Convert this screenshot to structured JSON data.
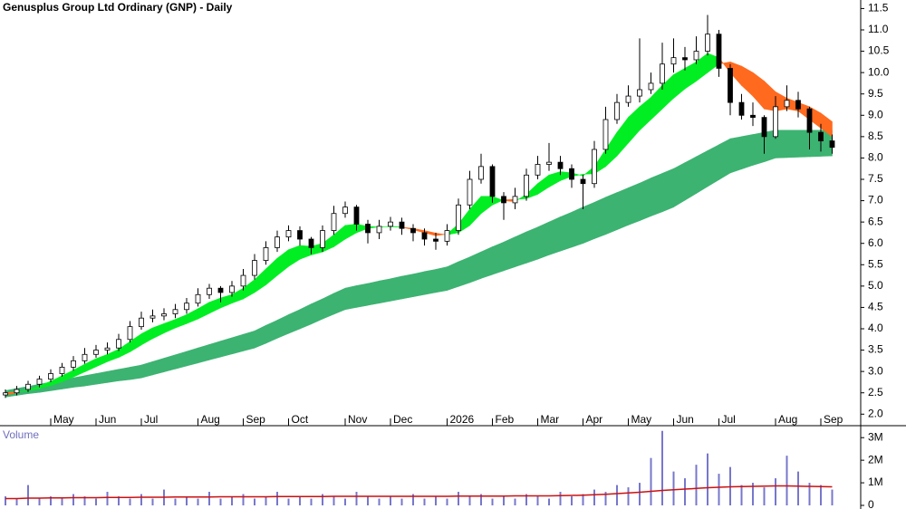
{
  "chart_data": [
    {
      "type": "candlestick",
      "title": "Genusplus Group Ltd Ordinary (GNP) - Daily",
      "categories": [
        null,
        null,
        null,
        null,
        "May",
        null,
        null,
        null,
        "Jun",
        null,
        null,
        null,
        "Jul",
        null,
        null,
        null,
        null,
        "Aug",
        null,
        null,
        null,
        "Sep",
        null,
        null,
        null,
        "Oct",
        null,
        null,
        null,
        null,
        "Nov",
        null,
        null,
        null,
        "Dec",
        null,
        null,
        null,
        null,
        "2026",
        null,
        null,
        null,
        "Feb",
        null,
        null,
        null,
        "Mar",
        null,
        null,
        null,
        "Apr",
        null,
        null,
        null,
        "May",
        null,
        null,
        null,
        "Jun",
        null,
        null,
        null,
        "Jul",
        null,
        null,
        null,
        null,
        "Aug",
        null,
        null,
        null,
        "Sep",
        null
      ],
      "open": [
        2.45,
        2.5,
        2.58,
        2.7,
        2.82,
        2.95,
        3.1,
        3.25,
        3.4,
        3.5,
        3.55,
        3.75,
        4.05,
        4.25,
        4.3,
        4.35,
        4.45,
        4.6,
        4.8,
        4.95,
        4.85,
        5.0,
        5.25,
        5.6,
        5.9,
        6.15,
        6.3,
        6.1,
        5.9,
        6.3,
        6.7,
        6.85,
        6.45,
        6.25,
        6.4,
        6.5,
        6.35,
        6.25,
        6.1,
        6.05,
        6.3,
        6.9,
        7.5,
        7.8,
        7.1,
        6.95,
        7.1,
        7.6,
        7.85,
        7.9,
        7.75,
        7.5,
        7.4,
        8.2,
        8.9,
        9.3,
        9.45,
        9.6,
        9.75,
        10.2,
        10.35,
        10.3,
        10.5,
        10.9,
        10.1,
        9.3,
        9.0,
        8.95,
        8.5,
        9.2,
        9.35,
        9.15,
        8.6,
        8.4
      ],
      "high": [
        2.58,
        2.66,
        2.78,
        2.9,
        3.05,
        3.2,
        3.36,
        3.55,
        3.62,
        3.68,
        3.88,
        4.18,
        4.4,
        4.45,
        4.48,
        4.58,
        4.72,
        4.95,
        5.05,
        5.0,
        5.12,
        5.4,
        5.75,
        6.05,
        6.3,
        6.42,
        6.4,
        6.15,
        6.42,
        6.88,
        6.98,
        6.9,
        6.55,
        6.55,
        6.62,
        6.6,
        6.45,
        6.35,
        6.25,
        6.45,
        7.05,
        7.7,
        8.1,
        7.85,
        7.2,
        7.3,
        7.75,
        8.05,
        8.35,
        8.05,
        7.85,
        7.6,
        8.4,
        9.2,
        9.5,
        9.7,
        10.8,
        10.0,
        10.7,
        10.8,
        10.6,
        10.85,
        11.35,
        11.0,
        10.2,
        9.5,
        9.3,
        9.0,
        9.45,
        9.7,
        9.55,
        9.2,
        8.8,
        8.55
      ],
      "low": [
        2.38,
        2.44,
        2.52,
        2.63,
        2.75,
        2.88,
        3.02,
        3.18,
        3.32,
        3.4,
        3.48,
        3.68,
        3.98,
        4.15,
        4.2,
        4.25,
        4.35,
        4.52,
        4.7,
        4.62,
        4.75,
        4.9,
        5.15,
        5.5,
        5.8,
        6.05,
        5.95,
        5.75,
        5.8,
        6.2,
        6.6,
        6.3,
        6.0,
        6.1,
        6.3,
        6.2,
        6.05,
        5.95,
        5.85,
        5.95,
        6.2,
        6.8,
        7.4,
        6.95,
        6.55,
        6.8,
        7.0,
        7.5,
        7.7,
        7.6,
        7.3,
        6.8,
        7.3,
        8.1,
        8.8,
        9.2,
        9.3,
        9.5,
        9.6,
        10.0,
        10.05,
        10.2,
        10.4,
        9.9,
        9.0,
        8.9,
        8.75,
        8.1,
        8.45,
        9.1,
        8.95,
        8.2,
        8.15,
        8.1
      ],
      "close": [
        2.5,
        2.58,
        2.7,
        2.82,
        2.95,
        3.1,
        3.25,
        3.4,
        3.5,
        3.55,
        3.75,
        4.05,
        4.25,
        4.3,
        4.35,
        4.45,
        4.6,
        4.8,
        4.95,
        4.85,
        5.0,
        5.25,
        5.6,
        5.9,
        6.15,
        6.3,
        6.1,
        5.9,
        6.3,
        6.7,
        6.85,
        6.45,
        6.25,
        6.4,
        6.5,
        6.35,
        6.25,
        6.1,
        6.05,
        6.3,
        6.9,
        7.5,
        7.8,
        7.1,
        6.95,
        7.1,
        7.6,
        7.85,
        7.9,
        7.75,
        7.5,
        7.4,
        8.2,
        8.9,
        9.3,
        9.45,
        9.6,
        9.75,
        10.2,
        10.35,
        10.3,
        10.5,
        10.9,
        10.1,
        9.3,
        9.0,
        8.95,
        8.5,
        9.2,
        9.35,
        9.15,
        8.6,
        8.4,
        8.25
      ],
      "short_ribbon": {
        "up_color": "#00ee22",
        "down_color": "#ff6a1f",
        "fast": [
          2.45,
          2.5,
          2.57,
          2.66,
          2.77,
          2.9,
          3.03,
          3.17,
          3.3,
          3.4,
          3.52,
          3.7,
          3.88,
          4.02,
          4.12,
          4.22,
          4.33,
          4.47,
          4.62,
          4.72,
          4.8,
          4.95,
          5.15,
          5.4,
          5.65,
          5.85,
          5.95,
          5.93,
          6.0,
          6.2,
          6.42,
          6.45,
          6.4,
          6.38,
          6.4,
          6.38,
          6.32,
          6.25,
          6.18,
          6.22,
          6.45,
          6.8,
          7.1,
          7.1,
          7.0,
          6.98,
          7.15,
          7.4,
          7.6,
          7.68,
          7.65,
          7.58,
          7.8,
          8.2,
          8.6,
          8.95,
          9.2,
          9.42,
          9.7,
          9.95,
          10.1,
          10.25,
          10.45,
          10.35,
          10.0,
          9.7,
          9.45,
          9.15,
          9.1,
          9.15,
          9.1,
          8.9,
          8.7,
          8.5
        ],
        "slow": [
          2.5,
          2.52,
          2.55,
          2.6,
          2.67,
          2.76,
          2.87,
          2.99,
          3.11,
          3.23,
          3.33,
          3.46,
          3.62,
          3.77,
          3.9,
          4.02,
          4.12,
          4.23,
          4.36,
          4.49,
          4.6,
          4.7,
          4.85,
          5.03,
          5.25,
          5.46,
          5.63,
          5.73,
          5.8,
          5.92,
          6.1,
          6.25,
          6.35,
          6.39,
          6.39,
          6.38,
          6.35,
          6.3,
          6.24,
          6.2,
          6.25,
          6.42,
          6.7,
          6.9,
          7.02,
          7.03,
          7.05,
          7.15,
          7.32,
          7.47,
          7.57,
          7.62,
          7.63,
          7.8,
          8.05,
          8.35,
          8.65,
          8.9,
          9.15,
          9.4,
          9.62,
          9.8,
          10.0,
          10.2,
          10.25,
          10.15,
          10.0,
          9.8,
          9.55,
          9.4,
          9.3,
          9.2,
          9.05,
          8.85
        ]
      },
      "long_ribbon": {
        "color": "#3cb371",
        "fast": [
          2.55,
          2.6,
          2.65,
          2.7,
          2.75,
          2.8,
          2.85,
          2.9,
          2.95,
          3.0,
          3.05,
          3.1,
          3.15,
          3.23,
          3.31,
          3.39,
          3.47,
          3.55,
          3.63,
          3.71,
          3.79,
          3.87,
          3.95,
          4.08,
          4.2,
          4.33,
          4.45,
          4.58,
          4.7,
          4.83,
          4.95,
          5.01,
          5.06,
          5.12,
          5.17,
          5.23,
          5.28,
          5.34,
          5.39,
          5.45,
          5.57,
          5.68,
          5.8,
          5.92,
          6.03,
          6.15,
          6.27,
          6.38,
          6.5,
          6.62,
          6.73,
          6.85,
          6.96,
          7.08,
          7.19,
          7.3,
          7.41,
          7.53,
          7.64,
          7.75,
          7.89,
          8.03,
          8.17,
          8.31,
          8.45,
          8.5,
          8.55,
          8.6,
          8.65,
          8.65,
          8.65,
          8.65,
          8.65,
          8.65
        ],
        "slow": [
          2.4,
          2.44,
          2.48,
          2.51,
          2.55,
          2.59,
          2.63,
          2.66,
          2.7,
          2.74,
          2.78,
          2.81,
          2.85,
          2.92,
          2.99,
          3.06,
          3.13,
          3.2,
          3.27,
          3.34,
          3.41,
          3.48,
          3.55,
          3.66,
          3.78,
          3.89,
          4.0,
          4.11,
          4.23,
          4.34,
          4.45,
          4.5,
          4.55,
          4.6,
          4.65,
          4.7,
          4.75,
          4.8,
          4.85,
          4.9,
          4.99,
          5.08,
          5.18,
          5.27,
          5.36,
          5.45,
          5.54,
          5.63,
          5.73,
          5.82,
          5.91,
          6.0,
          6.11,
          6.21,
          6.32,
          6.43,
          6.53,
          6.64,
          6.74,
          6.85,
          7.01,
          7.17,
          7.33,
          7.49,
          7.65,
          7.74,
          7.83,
          7.91,
          8.0,
          8.01,
          8.02,
          8.03,
          8.04,
          8.05
        ]
      },
      "ylim": [
        1.9,
        11.7
      ],
      "yticks": [
        {
          "value": 2,
          "label": "2.0"
        },
        2.5,
        {
          "value": 3,
          "label": "3.0"
        },
        3.5,
        {
          "value": 4,
          "label": "4.0"
        },
        4.5,
        {
          "value": 5,
          "label": "5.0"
        },
        5.5,
        {
          "value": 6,
          "label": "6.0"
        },
        6.5,
        {
          "value": 7,
          "label": "7.0"
        },
        7.5,
        {
          "value": 8,
          "label": "8.0"
        },
        8.5,
        {
          "value": 9,
          "label": "9.0"
        },
        9.5,
        {
          "value": 10,
          "label": "10.0"
        },
        10.5,
        {
          "value": 11,
          "label": "11.0"
        },
        11.5
      ]
    },
    {
      "type": "bar",
      "title": "Volume",
      "color": "#7777cc",
      "values": [
        0.4,
        0.3,
        0.9,
        0.3,
        0.4,
        0.3,
        0.5,
        0.4,
        0.3,
        0.6,
        0.4,
        0.3,
        0.5,
        0.3,
        0.7,
        0.3,
        0.4,
        0.3,
        0.6,
        0.3,
        0.4,
        0.5,
        0.3,
        0.4,
        0.6,
        0.3,
        0.4,
        0.3,
        0.5,
        0.4,
        0.3,
        0.6,
        0.4,
        0.3,
        0.4,
        0.3,
        0.5,
        0.3,
        0.4,
        0.3,
        0.6,
        0.4,
        0.5,
        0.3,
        0.4,
        0.3,
        0.5,
        0.4,
        0.3,
        0.6,
        0.4,
        0.5,
        0.7,
        0.6,
        0.9,
        0.8,
        1.0,
        2.1,
        3.3,
        1.5,
        1.2,
        1.8,
        2.3,
        1.4,
        1.7,
        0.9,
        1.0,
        0.8,
        1.2,
        2.2,
        1.5,
        1.0,
        0.9,
        0.7
      ],
      "average": {
        "color": "#cc1111",
        "values": [
          0.3,
          0.3,
          0.32,
          0.32,
          0.33,
          0.33,
          0.34,
          0.34,
          0.34,
          0.35,
          0.35,
          0.35,
          0.36,
          0.36,
          0.36,
          0.37,
          0.37,
          0.37,
          0.37,
          0.38,
          0.38,
          0.38,
          0.38,
          0.38,
          0.39,
          0.39,
          0.39,
          0.39,
          0.39,
          0.4,
          0.4,
          0.4,
          0.4,
          0.4,
          0.4,
          0.4,
          0.4,
          0.4,
          0.4,
          0.4,
          0.41,
          0.41,
          0.41,
          0.41,
          0.41,
          0.42,
          0.42,
          0.42,
          0.42,
          0.43,
          0.44,
          0.45,
          0.47,
          0.49,
          0.52,
          0.55,
          0.58,
          0.62,
          0.66,
          0.69,
          0.72,
          0.75,
          0.78,
          0.8,
          0.82,
          0.83,
          0.84,
          0.85,
          0.86,
          0.86,
          0.85,
          0.84,
          0.83,
          0.82
        ]
      },
      "ylim": [
        0,
        3.45
      ],
      "yticks": [
        0,
        {
          "value": 1,
          "label": "1M"
        },
        {
          "value": 2,
          "label": "2M"
        },
        {
          "value": 3,
          "label": "3M"
        }
      ]
    }
  ]
}
